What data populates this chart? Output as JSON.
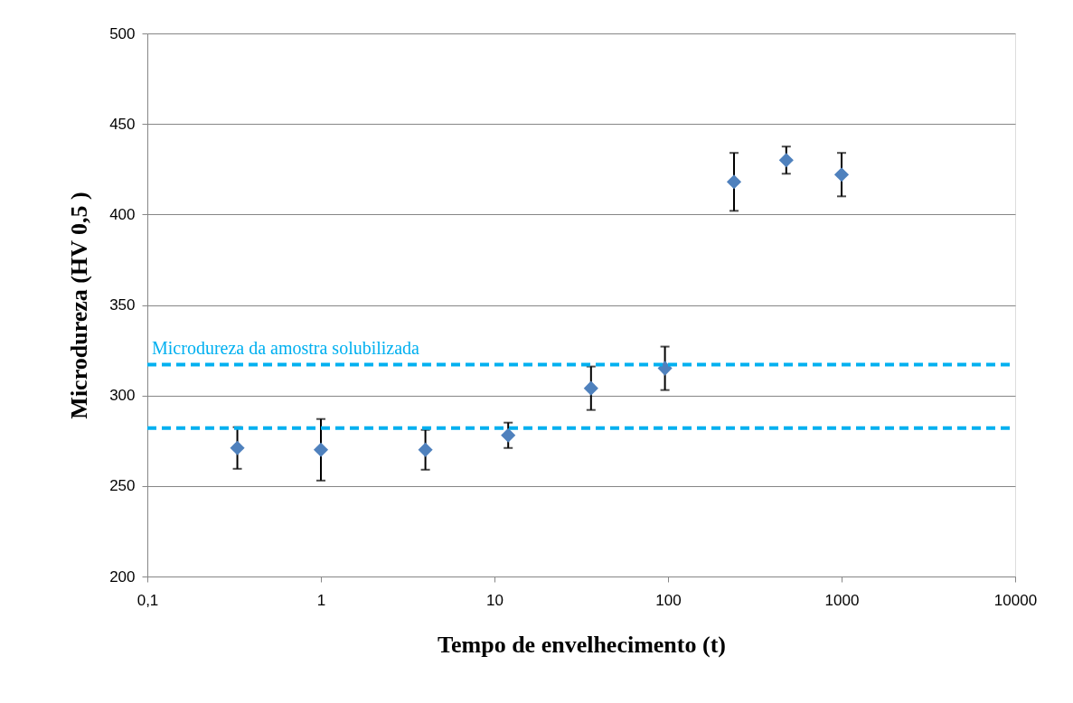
{
  "chart_data": {
    "type": "scatter",
    "xlabel": "Tempo de envelhecimento (t)",
    "ylabel": "Microdureza (HV 0,5 )",
    "x": [
      0.33,
      1,
      4,
      12,
      36,
      96,
      240,
      480,
      1000
    ],
    "series": [
      {
        "color": "#4f81bd",
        "values": [
          271,
          270,
          270,
          278,
          304,
          315,
          418,
          430,
          422
        ],
        "errors": [
          11.5,
          17,
          11,
          7,
          12,
          12,
          16,
          7.5,
          12
        ]
      }
    ],
    "log": "x",
    "xlim": [
      0.1,
      10000
    ],
    "xticks": [
      {
        "value": 0.1,
        "label": "0,1"
      },
      1,
      10,
      100,
      1000,
      10000
    ],
    "ylim": [
      200,
      500
    ],
    "yticks": [
      200,
      250,
      300,
      350,
      400,
      450,
      500
    ],
    "grid": "y",
    "marker": "diamond",
    "ref_lines": [
      {
        "axis": "y",
        "value": 317,
        "label": "Microdureza da amostra solubilizada",
        "color": "#00b0f0",
        "line_style": "dashed"
      },
      {
        "axis": "y",
        "value": 282,
        "color": "#00b0f0",
        "line_style": "dashed"
      }
    ]
  }
}
